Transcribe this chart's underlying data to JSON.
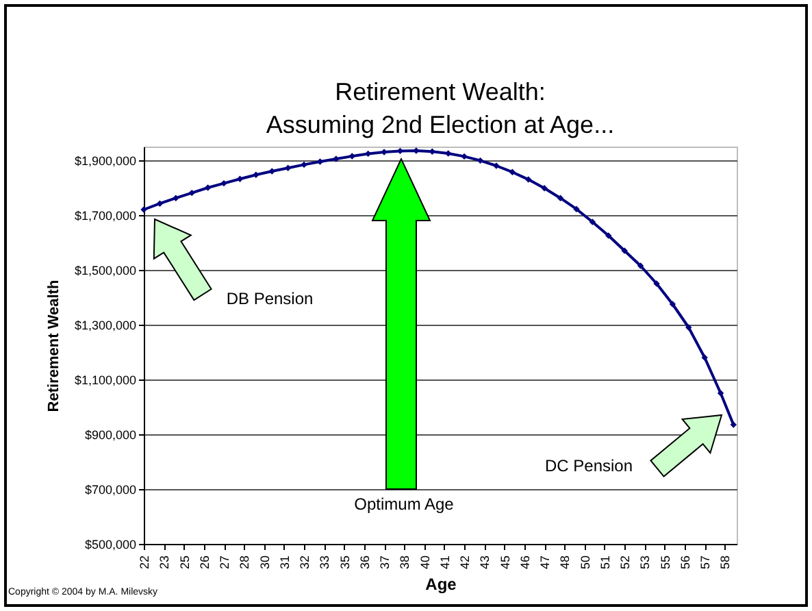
{
  "chart_data": {
    "type": "line",
    "title": "Retirement Wealth:\nAssuming 2nd Election at Age...",
    "xlabel": "Age",
    "ylabel": "Retirement Wealth",
    "x": [
      22,
      23,
      24,
      25,
      26,
      27,
      28,
      29,
      30,
      31,
      32,
      33,
      34,
      35,
      36,
      37,
      38,
      39,
      40,
      41,
      42,
      43,
      44,
      45,
      46,
      47,
      48,
      49,
      50,
      51,
      52,
      53,
      54,
      55,
      56,
      57,
      58,
      58.8
    ],
    "series": [
      {
        "color": "#000080",
        "values": [
          1720000,
          1742000,
          1762000,
          1781000,
          1800000,
          1816000,
          1832000,
          1847000,
          1860000,
          1872000,
          1884000,
          1895000,
          1905000,
          1915000,
          1924000,
          1930000,
          1934000,
          1935000,
          1932000,
          1925000,
          1914000,
          1899000,
          1880000,
          1857000,
          1830000,
          1798000,
          1762000,
          1722000,
          1675000,
          1625000,
          1570000,
          1515000,
          1450000,
          1375000,
          1290000,
          1180000,
          1050000,
          935000
        ]
      }
    ],
    "xlim": [
      22,
      59
    ],
    "xticks": [
      {
        "value": 22,
        "label": "22"
      },
      {
        "value": 23.25,
        "label": "23"
      },
      {
        "value": 24.5,
        "label": "25"
      },
      {
        "value": 25.75,
        "label": "26"
      },
      {
        "value": 27,
        "label": "27"
      },
      {
        "value": 28.25,
        "label": "28"
      },
      {
        "value": 29.5,
        "label": "30"
      },
      {
        "value": 30.75,
        "label": "31"
      },
      {
        "value": 32,
        "label": "32"
      },
      {
        "value": 33.25,
        "label": "33"
      },
      {
        "value": 34.5,
        "label": "35"
      },
      {
        "value": 35.75,
        "label": "36"
      },
      {
        "value": 37,
        "label": "37"
      },
      {
        "value": 38.25,
        "label": "38"
      },
      {
        "value": 39.5,
        "label": "40"
      },
      {
        "value": 40.75,
        "label": "41"
      },
      {
        "value": 42,
        "label": "42"
      },
      {
        "value": 43.25,
        "label": "43"
      },
      {
        "value": 44.5,
        "label": "45"
      },
      {
        "value": 45.75,
        "label": "46"
      },
      {
        "value": 47,
        "label": "47"
      },
      {
        "value": 48.25,
        "label": "48"
      },
      {
        "value": 49.5,
        "label": "50"
      },
      {
        "value": 50.75,
        "label": "51"
      },
      {
        "value": 52,
        "label": "52"
      },
      {
        "value": 53.25,
        "label": "53"
      },
      {
        "value": 54.5,
        "label": "55"
      },
      {
        "value": 55.75,
        "label": "56"
      },
      {
        "value": 57,
        "label": "57"
      },
      {
        "value": 58.25,
        "label": "58"
      }
    ],
    "ylim": [
      500000,
      1950000
    ],
    "yticks": [
      {
        "value": 500000,
        "label": "$500,000"
      },
      {
        "value": 700000,
        "label": "$700,000"
      },
      {
        "value": 900000,
        "label": "$900,000"
      },
      {
        "value": 1100000,
        "label": "$1,100,000"
      },
      {
        "value": 1300000,
        "label": "$1,300,000"
      },
      {
        "value": 1500000,
        "label": "$1,500,000"
      },
      {
        "value": 1700000,
        "label": "$1,700,000"
      },
      {
        "value": 1900000,
        "label": "$1,900,000"
      }
    ],
    "grid": "y",
    "marker": "diamond",
    "line_style": "solid",
    "annotations": [
      "DB Pension",
      "Optimum Age",
      "DC Pension",
      "Copyright © 2004 by M.A. Milevsky"
    ]
  }
}
